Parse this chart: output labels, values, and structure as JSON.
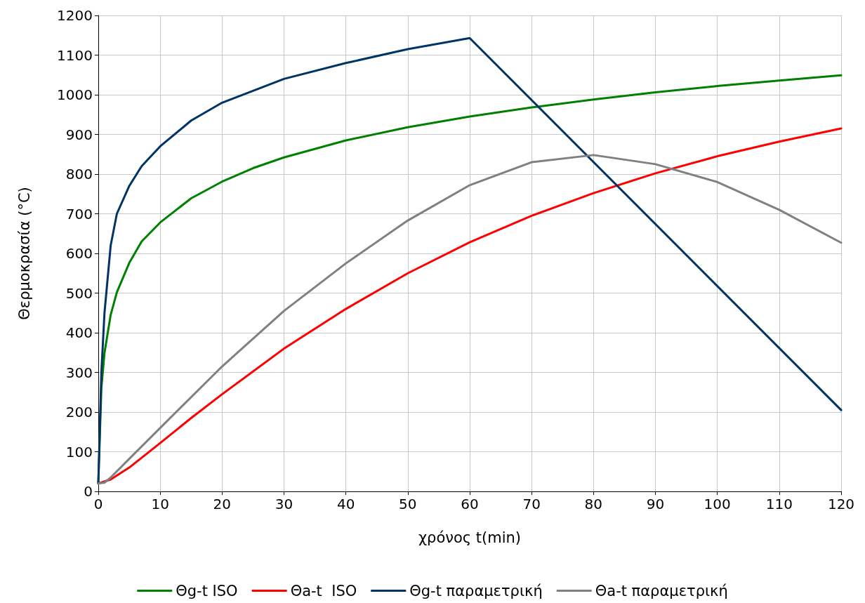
{
  "chart_data": {
    "type": "line",
    "xlabel": "χρόνος t(min)",
    "ylabel": "Θερμοκρασία (°C)",
    "xlim": [
      0,
      120
    ],
    "xticks": [
      0,
      10,
      20,
      30,
      40,
      50,
      60,
      70,
      80,
      90,
      100,
      110,
      120
    ],
    "ylim": [
      0,
      1200
    ],
    "yticks": [
      0,
      100,
      200,
      300,
      400,
      500,
      600,
      700,
      800,
      900,
      1000,
      1100,
      1200
    ],
    "grid": true,
    "legend": "bottom",
    "marker": "none",
    "line_style": "solid",
    "series": [
      {
        "name": "Θg-t ISO",
        "color": "#008000",
        "x": [
          0,
          0.5,
          1,
          2,
          3,
          5,
          7,
          10,
          15,
          20,
          25,
          30,
          40,
          50,
          60,
          70,
          80,
          90,
          100,
          110,
          120
        ],
        "values": [
          20,
          261,
          349,
          445,
          502,
          576,
          630,
          678,
          739,
          781,
          815,
          842,
          885,
          918,
          945,
          968,
          988,
          1006,
          1022,
          1036,
          1049
        ]
      },
      {
        "name": "Θa-t  ISO",
        "color": "#ff0000",
        "x": [
          0,
          2,
          5,
          10,
          15,
          20,
          30,
          40,
          50,
          60,
          70,
          80,
          90,
          100,
          110,
          120
        ],
        "values": [
          20,
          30,
          60,
          122,
          185,
          245,
          360,
          460,
          550,
          628,
          695,
          752,
          802,
          845,
          882,
          915
        ]
      },
      {
        "name": "Θg-t παραμετρική",
        "color": "#003366",
        "x": [
          0,
          0.5,
          1,
          2,
          3,
          5,
          7,
          10,
          15,
          20,
          30,
          40,
          50,
          60,
          120
        ],
        "values": [
          20,
          300,
          450,
          620,
          700,
          770,
          820,
          870,
          935,
          980,
          1040,
          1080,
          1115,
          1143,
          205
        ]
      },
      {
        "name": "Θa-t παραμετρική",
        "color": "#808080",
        "x": [
          0,
          1,
          2,
          5,
          10,
          20,
          30,
          40,
          50,
          60,
          70,
          80,
          90,
          100,
          110,
          120
        ],
        "values": [
          20,
          22,
          35,
          82,
          160,
          315,
          455,
          575,
          683,
          772,
          830,
          848,
          825,
          780,
          710,
          627
        ]
      }
    ]
  }
}
